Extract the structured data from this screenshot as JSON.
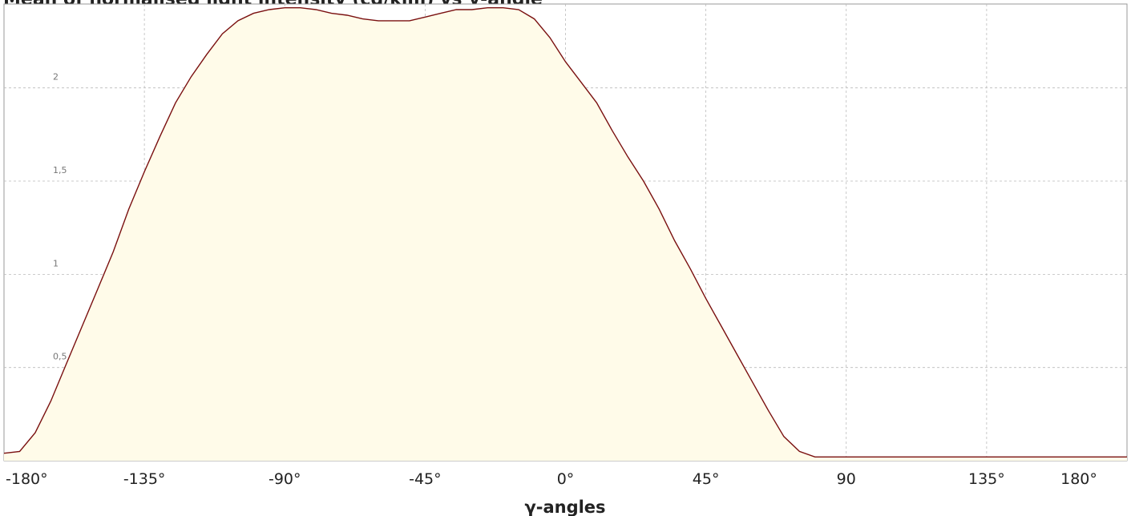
{
  "title": "Mean of normalised light intensity (cd/klm) vs γ-angle",
  "chart_data": {
    "type": "area",
    "title": "Mean of normalised light intensity (cd/klm) vs γ-angle",
    "xlabel": "γ-angles",
    "ylabel": "",
    "xlim": [
      -180,
      180
    ],
    "ylim": [
      0,
      2.45
    ],
    "grid": true,
    "legend": "none",
    "xticks": [
      {
        "value": -180,
        "label": "-180°"
      },
      {
        "value": -135,
        "label": "-135°"
      },
      {
        "value": -90,
        "label": "-90°"
      },
      {
        "value": -45,
        "label": "-45°"
      },
      {
        "value": 0,
        "label": "0°"
      },
      {
        "value": 45,
        "label": "45°"
      },
      {
        "value": 90,
        "label": "90"
      },
      {
        "value": 135,
        "label": "135°"
      },
      {
        "value": 180,
        "label": "180°"
      }
    ],
    "yticks": [
      {
        "value": 0.5,
        "label": "0,5"
      },
      {
        "value": 1,
        "label": "1"
      },
      {
        "value": 1.5,
        "label": "1,5"
      },
      {
        "value": 2,
        "label": "2"
      }
    ],
    "colors": {
      "line": "#7a1010",
      "fill": "#fffbe9",
      "grid": "#bbbbbb"
    },
    "series": [
      {
        "x": [
          -180,
          -175,
          -170,
          -165,
          -160,
          -155,
          -150,
          -145,
          -140,
          -135,
          -130,
          -125,
          -120,
          -115,
          -110,
          -105,
          -100,
          -95,
          -90,
          -85,
          -80,
          -75,
          -70,
          -65,
          -60,
          -55,
          -50,
          -45,
          -40,
          -35,
          -30,
          -25,
          -20,
          -15,
          -10,
          -5,
          0,
          5,
          10,
          15,
          20,
          25,
          30,
          35,
          40,
          45,
          50,
          55,
          60,
          65,
          70,
          75,
          80,
          85,
          90,
          95,
          100,
          105,
          110,
          115,
          120,
          125,
          130,
          135,
          140,
          145,
          150,
          155,
          160,
          165,
          170,
          175,
          180
        ],
        "values": [
          0.04,
          0.05,
          0.15,
          0.32,
          0.52,
          0.72,
          0.92,
          1.12,
          1.35,
          1.55,
          1.74,
          1.92,
          2.06,
          2.18,
          2.29,
          2.36,
          2.4,
          2.42,
          2.43,
          2.43,
          2.42,
          2.4,
          2.39,
          2.37,
          2.36,
          2.36,
          2.36,
          2.38,
          2.4,
          2.42,
          2.42,
          2.43,
          2.43,
          2.42,
          2.37,
          2.27,
          2.14,
          2.03,
          1.92,
          1.77,
          1.63,
          1.5,
          1.35,
          1.18,
          1.03,
          0.87,
          0.72,
          0.57,
          0.42,
          0.27,
          0.13,
          0.05,
          0.02,
          0.02,
          0.02,
          0.02,
          0.02,
          0.02,
          0.02,
          0.02,
          0.02,
          0.02,
          0.02,
          0.02,
          0.02,
          0.02,
          0.02,
          0.02,
          0.02,
          0.02,
          0.02,
          0.02,
          0.02
        ]
      }
    ]
  }
}
